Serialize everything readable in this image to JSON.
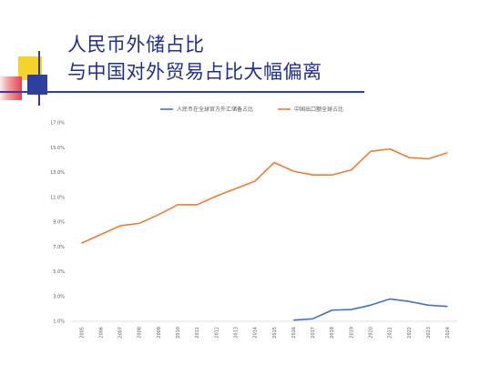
{
  "slide": {
    "title_line1": "人民币外储占比",
    "title_line2": "与中国对外贸易占比大幅偏离"
  },
  "colors": {
    "title": "#1f2f8f",
    "series_reserve": "#4472c4",
    "series_export": "#ed7d31",
    "deco_yellow": "#f5d32b",
    "deco_red": "#e8414b",
    "deco_blue": "#2f3f9f"
  },
  "chart_data": {
    "type": "line",
    "title": "",
    "xlabel": "",
    "ylabel": "",
    "x": [
      "2005",
      "2006",
      "2007",
      "2008",
      "2009",
      "2010",
      "2011",
      "2012",
      "2013",
      "2014",
      "2015",
      "2016",
      "2017",
      "2018",
      "2019",
      "2020",
      "2021",
      "2022",
      "2023",
      "2024"
    ],
    "ylim": [
      1.0,
      17.0
    ],
    "yticks": [
      "1.0%",
      "3.0%",
      "5.0%",
      "7.0%",
      "9.0%",
      "11.0%",
      "13.0%",
      "15.0%",
      "17.0%"
    ],
    "legend_position": "top",
    "grid": false,
    "series": [
      {
        "name": "人民币在全球官方外汇储备占比",
        "color": "#4472c4",
        "values": [
          null,
          null,
          null,
          null,
          null,
          null,
          null,
          null,
          null,
          null,
          null,
          1.1,
          1.2,
          1.9,
          1.95,
          2.3,
          2.8,
          2.6,
          2.3,
          2.2
        ]
      },
      {
        "name": "中国出口额全球占比",
        "color": "#ed7d31",
        "values": [
          7.3,
          8.0,
          8.7,
          8.9,
          9.6,
          10.4,
          10.4,
          11.1,
          11.7,
          12.3,
          13.8,
          13.1,
          12.8,
          12.8,
          13.2,
          14.7,
          14.9,
          14.2,
          14.1,
          14.6
        ]
      }
    ]
  }
}
